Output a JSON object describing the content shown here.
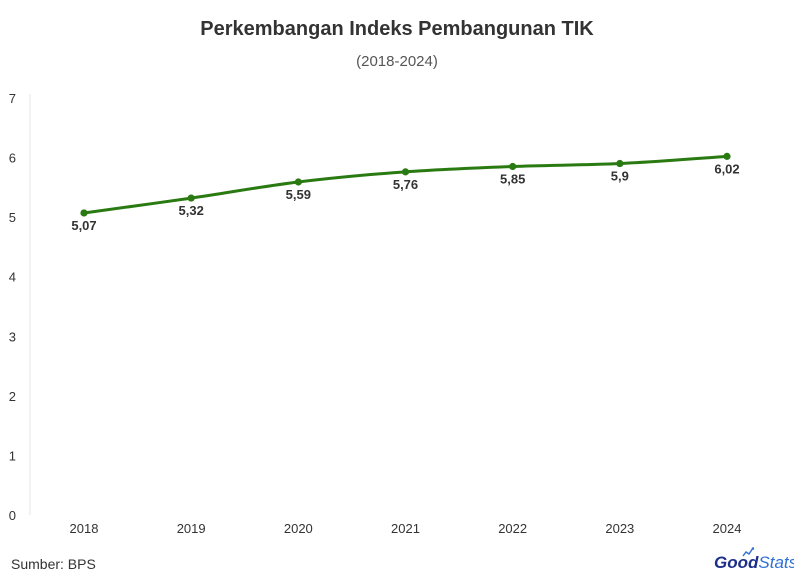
{
  "chart_data": {
    "type": "line",
    "title": "Perkembangan Indeks Pembangunan TIK",
    "subtitle": "(2018-2024)",
    "categories": [
      "2018",
      "2019",
      "2020",
      "2021",
      "2022",
      "2023",
      "2024"
    ],
    "values": [
      5.07,
      5.32,
      5.59,
      5.76,
      5.85,
      5.9,
      6.02
    ],
    "data_labels": [
      "5,07",
      "5,32",
      "5,59",
      "5,76",
      "5,85",
      "5,9",
      "6,02"
    ],
    "y_ticks": [
      "0",
      "1",
      "2",
      "3",
      "4",
      "5",
      "6",
      "7"
    ],
    "ylim": [
      0,
      7
    ],
    "grid": false,
    "legend": "none",
    "line_color": "#2a7a12",
    "source": "Sumber: BPS"
  },
  "brand": {
    "logo_part1": "Good",
    "logo_part2": "Stats",
    "color_primary": "#1c2f8a",
    "color_secondary": "#2f6fd6"
  }
}
